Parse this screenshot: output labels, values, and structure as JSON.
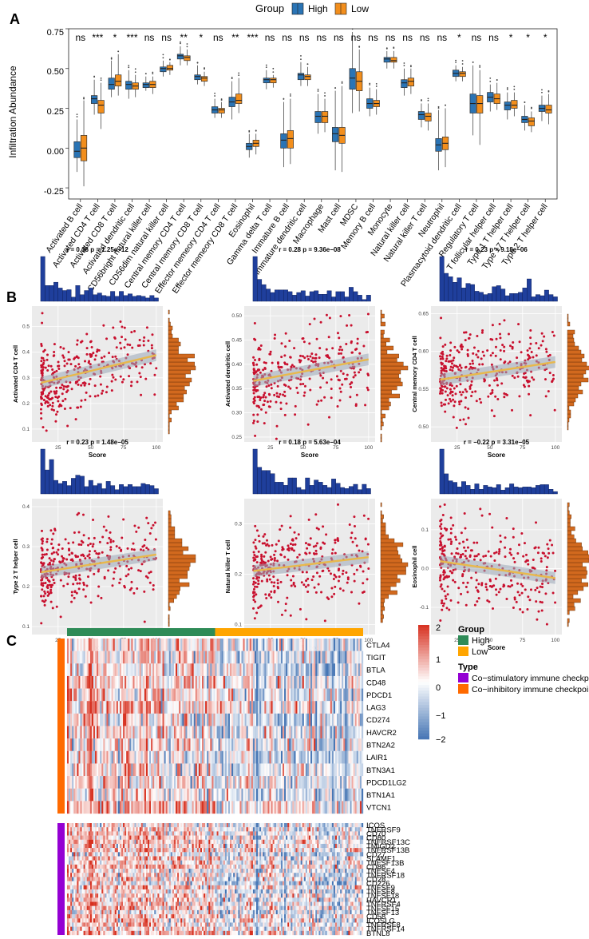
{
  "colors": {
    "high": "#2a74b5",
    "low": "#f28e1c",
    "scatter_point": "#c8102e",
    "hist_top": "#1f3f9c",
    "hist_right": "#d2691e",
    "fit_line": "#e8b84c",
    "panel_bg": "#ebebeb",
    "group_high": "#2e8b57",
    "group_low": "#ffa500",
    "type_costim": "#9400d3",
    "type_coinhib": "#ff6a00",
    "heat_high": "#d7301f",
    "heat_mid": "#ffffff",
    "heat_low": "#4575b4"
  },
  "panelA": {
    "label": "A",
    "legend_title": "Group",
    "legend_items": [
      "High",
      "Low"
    ],
    "ylabel": "Infiltration Abundance",
    "yticks": [
      "0.75",
      "0.50",
      "0.25",
      "0.00",
      "-0.25"
    ],
    "chart_data": {
      "type": "boxplot",
      "ylim": [
        -0.32,
        0.75
      ],
      "categories": [
        "Activated B cell",
        "Activated CD4 T cell",
        "Activated CD8 T cell",
        "Activated dendritic cell",
        "CD56bright natural killer cell",
        "CD56dim natural killer cell",
        "Central memory CD4 T cell",
        "Central memory CD8 T cell",
        "Effector memeory CD4 T cell",
        "Effector memeory CD8 T cell",
        "Eosinophil",
        "Gamma delta T cell",
        "Immature  B cell",
        "Immature dendritic cell",
        "Macrophage",
        "Mast cell",
        "MDSC",
        "Memory B cell",
        "Monocyte",
        "Natural killer cell",
        "Natural killer T cell",
        "Neutrophil",
        "Plasmacytoid dendritic cell",
        "Regulatory T cell",
        "T follicular helper cell",
        "Type 1 T helper cell",
        "Type 17 T helper cell",
        "Type 2 T helper cell"
      ],
      "significance": [
        "ns",
        "***",
        "*",
        "***",
        "ns",
        "ns",
        "**",
        "*",
        "ns",
        "**",
        "***",
        "ns",
        "ns",
        "ns",
        "ns",
        "ns",
        "ns",
        "ns",
        "ns",
        "ns",
        "ns",
        "ns",
        "*",
        "ns",
        "ns",
        "*",
        "*",
        "*"
      ],
      "series": [
        {
          "name": "High",
          "boxes": [
            [
              -0.15,
              -0.06,
              -0.02,
              0.04,
              0.18
            ],
            [
              0.21,
              0.28,
              0.31,
              0.33,
              0.43
            ],
            [
              0.32,
              0.37,
              0.4,
              0.44,
              0.55
            ],
            [
              0.31,
              0.37,
              0.4,
              0.42,
              0.49
            ],
            [
              0.36,
              0.38,
              0.4,
              0.41,
              0.45
            ],
            [
              0.45,
              0.48,
              0.5,
              0.51,
              0.55
            ],
            [
              0.52,
              0.56,
              0.58,
              0.59,
              0.64
            ],
            [
              0.4,
              0.43,
              0.45,
              0.46,
              0.52
            ],
            [
              0.19,
              0.22,
              0.24,
              0.26,
              0.31
            ],
            [
              0.18,
              0.26,
              0.29,
              0.32,
              0.42
            ],
            [
              -0.06,
              -0.01,
              0.01,
              0.03,
              0.09
            ],
            [
              0.37,
              0.41,
              0.43,
              0.44,
              0.49
            ],
            [
              -0.12,
              0.0,
              0.05,
              0.09,
              0.29
            ],
            [
              0.39,
              0.43,
              0.46,
              0.47,
              0.54
            ],
            [
              0.09,
              0.16,
              0.2,
              0.23,
              0.34
            ],
            [
              -0.14,
              0.04,
              0.09,
              0.13,
              0.36
            ],
            [
              0.22,
              0.37,
              0.44,
              0.5,
              0.73
            ],
            [
              0.2,
              0.25,
              0.28,
              0.31,
              0.38
            ],
            [
              0.5,
              0.54,
              0.56,
              0.57,
              0.61
            ],
            [
              0.33,
              0.38,
              0.41,
              0.43,
              0.5
            ],
            [
              0.13,
              0.18,
              0.21,
              0.23,
              0.28
            ],
            [
              -0.14,
              -0.02,
              0.02,
              0.06,
              0.24
            ],
            [
              0.42,
              0.45,
              0.47,
              0.49,
              0.52
            ],
            [
              0.08,
              0.22,
              0.28,
              0.34,
              0.52
            ],
            [
              0.23,
              0.29,
              0.32,
              0.35,
              0.4
            ],
            [
              0.18,
              0.24,
              0.27,
              0.29,
              0.35
            ],
            [
              0.11,
              0.16,
              0.18,
              0.2,
              0.27
            ],
            [
              0.17,
              0.23,
              0.25,
              0.27,
              0.33
            ]
          ]
        },
        {
          "name": "Low",
          "boxes": [
            [
              -0.24,
              -0.08,
              0.0,
              0.08,
              0.3
            ],
            [
              0.12,
              0.22,
              0.27,
              0.3,
              0.41
            ],
            [
              0.33,
              0.39,
              0.42,
              0.46,
              0.59
            ],
            [
              0.32,
              0.37,
              0.39,
              0.41,
              0.46
            ],
            [
              0.34,
              0.38,
              0.4,
              0.42,
              0.45
            ],
            [
              0.46,
              0.49,
              0.5,
              0.52,
              0.54
            ],
            [
              0.52,
              0.55,
              0.57,
              0.58,
              0.62
            ],
            [
              0.39,
              0.42,
              0.44,
              0.45,
              0.48
            ],
            [
              0.19,
              0.22,
              0.24,
              0.25,
              0.29
            ],
            [
              0.22,
              0.28,
              0.3,
              0.34,
              0.44
            ],
            [
              -0.04,
              0.01,
              0.03,
              0.05,
              0.09
            ],
            [
              0.38,
              0.41,
              0.43,
              0.44,
              0.46
            ],
            [
              -0.1,
              0.0,
              0.06,
              0.11,
              0.31
            ],
            [
              0.39,
              0.43,
              0.45,
              0.46,
              0.51
            ],
            [
              0.1,
              0.16,
              0.2,
              0.23,
              0.31
            ],
            [
              -0.15,
              0.03,
              0.08,
              0.13,
              0.39
            ],
            [
              0.23,
              0.36,
              0.42,
              0.48,
              0.62
            ],
            [
              0.21,
              0.26,
              0.28,
              0.3,
              0.37
            ],
            [
              0.5,
              0.54,
              0.55,
              0.57,
              0.61
            ],
            [
              0.34,
              0.39,
              0.42,
              0.44,
              0.5
            ],
            [
              0.11,
              0.17,
              0.2,
              0.22,
              0.28
            ],
            [
              -0.12,
              -0.01,
              0.03,
              0.07,
              0.25
            ],
            [
              0.42,
              0.45,
              0.47,
              0.48,
              0.51
            ],
            [
              0.02,
              0.22,
              0.28,
              0.33,
              0.49
            ],
            [
              0.24,
              0.28,
              0.31,
              0.34,
              0.41
            ],
            [
              0.2,
              0.25,
              0.27,
              0.3,
              0.35
            ],
            [
              0.1,
              0.14,
              0.17,
              0.19,
              0.23
            ],
            [
              0.15,
              0.22,
              0.24,
              0.27,
              0.34
            ]
          ]
        }
      ]
    }
  },
  "panelB": {
    "label": "B",
    "chart_data": [
      {
        "type": "scatter",
        "title": "r = 0.36  p = 1.25e−12",
        "xlabel": "Score",
        "ylabel": "Activated CD4 T cell",
        "xlim": [
          5,
          105
        ],
        "ylim": [
          0.05,
          0.58
        ],
        "xticks": [
          "25",
          "50",
          "75",
          "100"
        ],
        "yticks": [
          "0.1",
          "0.2",
          "0.3",
          "0.4",
          "0.5"
        ],
        "r": 0.36,
        "n": 330,
        "seed": 11
      },
      {
        "type": "scatter",
        "title": "r = 0.28  p = 9.36e−08",
        "xlabel": "Score",
        "ylabel": "Activated dendritic cell",
        "xlim": [
          5,
          105
        ],
        "ylim": [
          0.24,
          0.52
        ],
        "xticks": [
          "25",
          "50",
          "75",
          "100"
        ],
        "yticks": [
          "0.25",
          "0.30",
          "0.35",
          "0.40",
          "0.45",
          "0.50"
        ],
        "r": 0.28,
        "n": 330,
        "seed": 23
      },
      {
        "type": "scatter",
        "title": "r = 0.23  p = 9.18e−06",
        "xlabel": "Score",
        "ylabel": "Central memory CD4 T cell",
        "xlim": [
          5,
          105
        ],
        "ylim": [
          0.48,
          0.66
        ],
        "xticks": [
          "25",
          "50",
          "75",
          "100"
        ],
        "yticks": [
          "0.50",
          "0.55",
          "0.60",
          "0.65"
        ],
        "r": 0.23,
        "n": 330,
        "seed": 37
      },
      {
        "type": "scatter",
        "title": "r = 0.23  p = 1.48e−05",
        "xlabel": "Score",
        "ylabel": "Type 2 T helper cell",
        "xlim": [
          5,
          105
        ],
        "ylim": [
          0.08,
          0.42
        ],
        "xticks": [
          "25",
          "50",
          "75",
          "100"
        ],
        "yticks": [
          "0.1",
          "0.2",
          "0.3",
          "0.4"
        ],
        "r": 0.23,
        "n": 330,
        "seed": 41
      },
      {
        "type": "scatter",
        "title": "r = 0.18  p = 5.63e−04",
        "xlabel": "Score",
        "ylabel": "Natural killer T cell",
        "xlim": [
          5,
          105
        ],
        "ylim": [
          0.08,
          0.35
        ],
        "xticks": [
          "25",
          "50",
          "75",
          "100"
        ],
        "yticks": [
          "0.1",
          "0.2",
          "0.3"
        ],
        "r": 0.18,
        "n": 330,
        "seed": 53
      },
      {
        "type": "scatter",
        "title": "r = −0.22  p = 3.31e−05",
        "xlabel": "Score",
        "ylabel": "Eosinophil cell",
        "xlim": [
          5,
          105
        ],
        "ylim": [
          -0.17,
          0.18
        ],
        "xticks": [
          "25",
          "50",
          "75",
          "100"
        ],
        "yticks": [
          "-0.1",
          "0.0",
          "0.1"
        ],
        "r": -0.22,
        "n": 330,
        "seed": 67
      }
    ]
  },
  "panelC": {
    "label": "C",
    "chart_data": {
      "type": "heatmap",
      "groups": [
        {
          "name": "High",
          "count": 90
        },
        {
          "name": "Low",
          "count": 90
        }
      ],
      "row_groups": [
        {
          "type": "Co−inhibitory immune checkpoint",
          "rows": [
            "CTLA4",
            "TIGIT",
            "BTLA",
            "CD48",
            "PDCD1",
            "LAG3",
            "CD274",
            "HAVCR2",
            "BTN2A2",
            "LAIR1",
            "BTN3A1",
            "PDCD1LG2",
            "BTN1A1",
            "VTCN1"
          ]
        },
        {
          "type": "Co−stimulatory immune checkpoint",
          "rows": [
            "ICOS",
            "TNFRSF9",
            "CD70",
            "CD80",
            "TNFRSF13C",
            "TMIGD2",
            "TNFRSF13B",
            "CD27",
            "SLAMF1",
            "TNFSF13B",
            "CD86",
            "TNFSF4",
            "TNFRSF18",
            "CD28",
            "CD226",
            "TNFSF9",
            "TNFSF8",
            "TNFSF18",
            "HAVCR1",
            "TNFRSF4",
            "TNFSF15",
            "TNFSF13",
            "CD58",
            "ICOSLG",
            "TNFRSF8",
            "TNFRSF14",
            "BTNL8"
          ]
        }
      ],
      "color_scale": {
        "min": -2,
        "max": 2,
        "ticks": [
          "2",
          "1",
          "0",
          "−1",
          "−2"
        ]
      },
      "legend_group_title": "Group",
      "legend_group_items": [
        "High",
        "Low"
      ],
      "legend_type_title": "Type",
      "legend_type_items": [
        "Co−stimulatory immune checkpoint",
        "Co−inhibitory immune checkpoint"
      ]
    }
  }
}
